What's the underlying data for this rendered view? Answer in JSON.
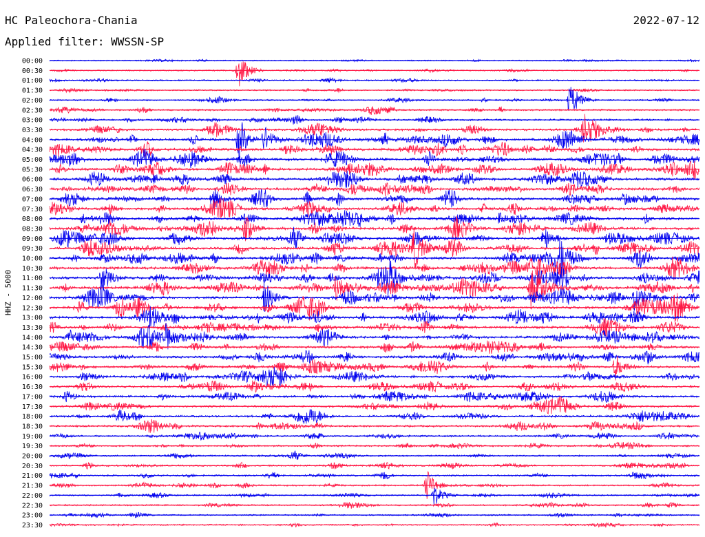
{
  "header": {
    "station": "HC Paleochora-Chania",
    "date": "2022-07-12",
    "filter": "Applied filter: WWSSN-SP"
  },
  "chart_data": {
    "type": "line",
    "title": "HC Paleochora-Chania",
    "date": "2022-07-12",
    "subtitle": "Applied filter: WWSSN-SP",
    "ylabel": "HHZ - 5000",
    "xlabel": "",
    "categories": [
      "00:00",
      "00:30",
      "01:00",
      "01:30",
      "02:00",
      "02:30",
      "03:00",
      "03:30",
      "04:00",
      "04:30",
      "05:00",
      "05:30",
      "06:00",
      "06:30",
      "07:00",
      "07:30",
      "08:00",
      "08:30",
      "09:00",
      "09:30",
      "10:00",
      "10:30",
      "11:00",
      "11:30",
      "12:00",
      "12:30",
      "13:00",
      "13:30",
      "14:00",
      "14:30",
      "15:00",
      "15:30",
      "16:00",
      "16:30",
      "17:00",
      "17:30",
      "18:00",
      "18:30",
      "19:00",
      "19:30",
      "20:00",
      "20:30",
      "21:00",
      "21:30",
      "22:00",
      "22:30",
      "23:00",
      "23:30"
    ],
    "series_colors": [
      "#0000ee",
      "#ff1744"
    ],
    "row_activity": [
      0.15,
      0.25,
      0.3,
      0.3,
      0.35,
      0.45,
      0.55,
      0.7,
      0.9,
      0.95,
      1.0,
      1.0,
      1.0,
      1.0,
      1.0,
      1.0,
      1.0,
      1.0,
      1.0,
      1.0,
      1.0,
      1.0,
      1.0,
      1.0,
      1.0,
      1.0,
      1.0,
      0.95,
      0.9,
      0.85,
      0.85,
      0.8,
      0.75,
      0.7,
      0.7,
      0.7,
      0.65,
      0.6,
      0.5,
      0.45,
      0.4,
      0.45,
      0.45,
      0.4,
      0.35,
      0.35,
      0.3,
      0.3
    ],
    "events": [
      {
        "row": 1,
        "x": 0.29,
        "amp": 3.2
      },
      {
        "row": 4,
        "x": 0.8,
        "amp": 3.0
      },
      {
        "row": 7,
        "x": 0.82,
        "amp": 2.6
      },
      {
        "row": 8,
        "x": 0.29,
        "amp": 3.2
      },
      {
        "row": 8,
        "x": 0.33,
        "amp": 2.4
      },
      {
        "row": 14,
        "x": 0.25,
        "amp": 2.2
      },
      {
        "row": 17,
        "x": 0.3,
        "amp": 1.8
      },
      {
        "row": 19,
        "x": 0.56,
        "amp": 3.5
      },
      {
        "row": 18,
        "x": 0.76,
        "amp": 2.4
      },
      {
        "row": 20,
        "x": 0.78,
        "amp": 3.2
      },
      {
        "row": 22,
        "x": 0.08,
        "amp": 2.6
      },
      {
        "row": 22,
        "x": 0.52,
        "amp": 2.4
      },
      {
        "row": 23,
        "x": 0.44,
        "amp": 2.4
      },
      {
        "row": 23,
        "x": 0.74,
        "amp": 2.8
      },
      {
        "row": 24,
        "x": 0.33,
        "amp": 3.0
      },
      {
        "row": 24,
        "x": 0.9,
        "amp": 2.0
      },
      {
        "row": 25,
        "x": 0.96,
        "amp": 2.6
      },
      {
        "row": 28,
        "x": 0.18,
        "amp": 2.0
      },
      {
        "row": 31,
        "x": 0.87,
        "amp": 2.2
      },
      {
        "row": 43,
        "x": 0.58,
        "amp": 2.2
      },
      {
        "row": 44,
        "x": 0.59,
        "amp": 2.0
      }
    ]
  }
}
